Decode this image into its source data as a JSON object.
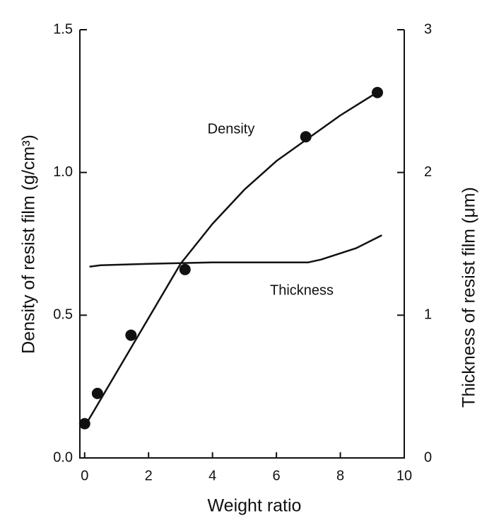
{
  "chart_data": {
    "type": "line",
    "xlabel": "Weight ratio",
    "ylabel": "Density of resist film (g/cm³)",
    "y2label": "Thickness of resist film (μm)",
    "annotations": [
      "Density",
      "Thickness"
    ],
    "xlim": [
      -0.15,
      10
    ],
    "xticks": [
      0,
      2,
      4,
      6,
      8,
      10
    ],
    "ylim": [
      0,
      1.5
    ],
    "yticks": [
      {
        "value": 0,
        "label": "0.0"
      },
      0.5,
      {
        "value": 1,
        "label": "1.0"
      },
      1.5
    ],
    "y2lim": [
      0,
      3
    ],
    "y2ticks": [
      0,
      1,
      2,
      3
    ],
    "series": [
      {
        "name": "Density",
        "color": "#111111",
        "style": "points",
        "x": [
          0,
          0.4,
          1.45,
          3.14,
          6.92,
          9.16
        ],
        "values": [
          0.12,
          0.226,
          0.43,
          0.66,
          1.125,
          1.28
        ]
      },
      {
        "name": "Density",
        "color": "#111111",
        "style": "curve",
        "x": [
          0,
          1,
          2,
          3,
          4,
          5,
          6,
          7,
          8,
          9,
          9.2
        ],
        "values": [
          0.11,
          0.3,
          0.49,
          0.68,
          0.82,
          0.94,
          1.04,
          1.12,
          1.2,
          1.27,
          1.28
        ]
      },
      {
        "name": "Thickness",
        "color": "#111111",
        "style": "curve",
        "axis": "y2",
        "x": [
          0.15,
          0.5,
          2,
          4,
          7,
          7.4,
          8.5,
          9.3
        ],
        "values": [
          1.34,
          1.35,
          1.36,
          1.37,
          1.37,
          1.39,
          1.47,
          1.56
        ]
      }
    ]
  }
}
